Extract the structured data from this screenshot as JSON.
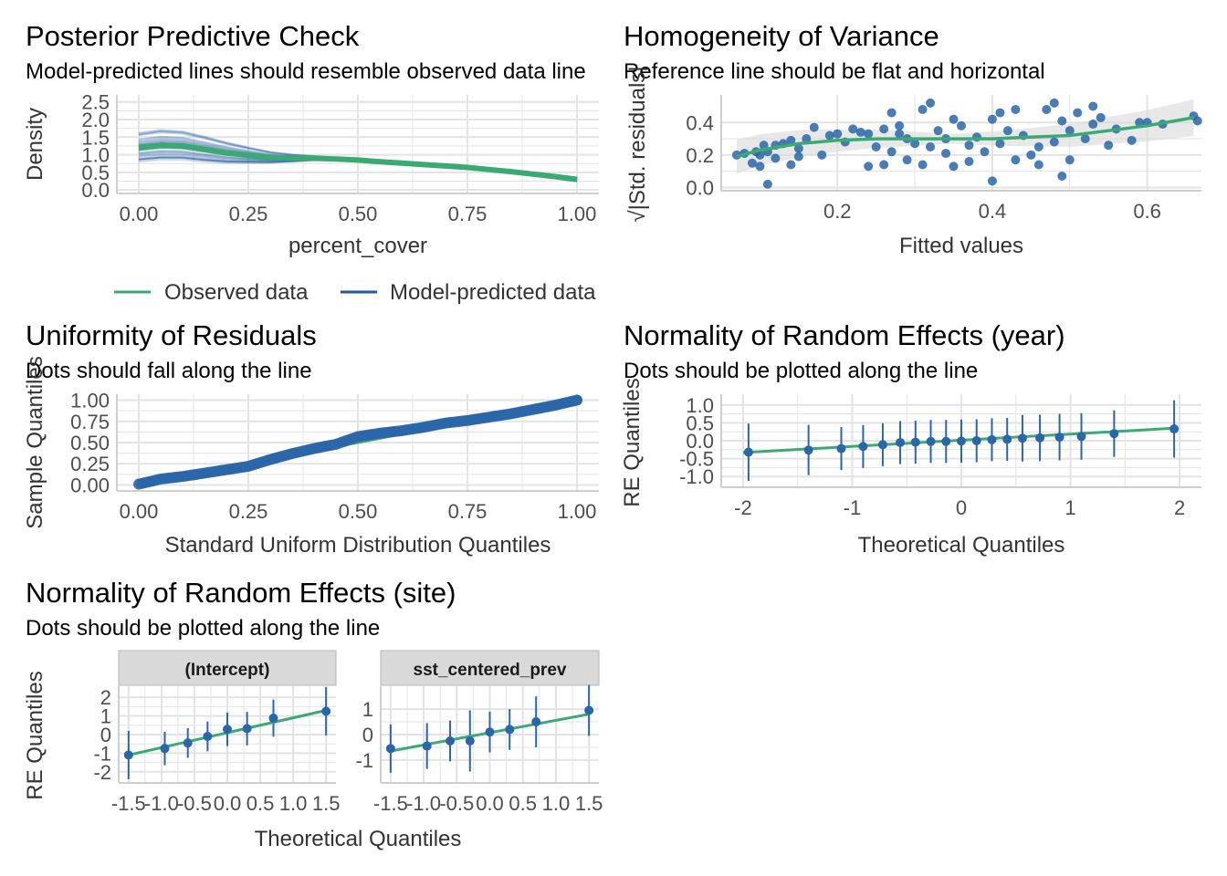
{
  "colors": {
    "observed": "#3aaa72",
    "predicted": "#1f5a9c",
    "points": "#2b66a8",
    "band": "#d9d9d9",
    "grid": "#e3e3e3",
    "strip_bg": "#d9d9d9"
  },
  "chart_data": [
    {
      "id": "ppc",
      "type": "line",
      "title": "Posterior Predictive Check",
      "subtitle": "Model-predicted lines should resemble observed data line",
      "xlabel": "percent_cover",
      "ylabel": "Density",
      "xlim": [
        -0.05,
        1.05
      ],
      "ylim": [
        -0.1,
        2.7
      ],
      "xticks": [
        0,
        0.25,
        0.5,
        0.75,
        1
      ],
      "xtick_labels": [
        "0.00",
        "0.25",
        "0.50",
        "0.75",
        "1.00"
      ],
      "yticks": [
        0,
        0.5,
        1,
        1.5,
        2,
        2.5
      ],
      "ytick_labels": [
        "0.0",
        "0.5",
        "1.0",
        "1.5",
        "2.0",
        "2.5"
      ],
      "legend": [
        "Observed data",
        "Model-predicted data"
      ],
      "observed": {
        "x": [
          0,
          0.05,
          0.1,
          0.15,
          0.2,
          0.25,
          0.3,
          0.35,
          0.4,
          0.45,
          0.5,
          0.55,
          0.6,
          0.65,
          0.7,
          0.75,
          0.8,
          0.85,
          0.9,
          0.95,
          1.0
        ],
        "y": [
          1.2,
          1.27,
          1.25,
          1.15,
          1.05,
          0.98,
          0.92,
          0.9,
          0.9,
          0.88,
          0.85,
          0.8,
          0.76,
          0.72,
          0.68,
          0.64,
          0.58,
          0.52,
          0.45,
          0.38,
          0.3
        ]
      }
    },
    {
      "id": "hov",
      "type": "scatter",
      "title": "Homogeneity of Variance",
      "subtitle": "Reference line should be flat and horizontal",
      "xlabel": "Fitted values",
      "ylabel": "√|Std. residuals|",
      "xlim": [
        0.05,
        0.67
      ],
      "ylim": [
        -0.02,
        0.57
      ],
      "xticks": [
        0.2,
        0.4,
        0.6
      ],
      "xtick_labels": [
        "0.2",
        "0.4",
        "0.6"
      ],
      "yticks": [
        0,
        0.2,
        0.4
      ],
      "ytick_labels": [
        "0.0",
        "0.2",
        "0.4"
      ],
      "points": [
        [
          0.07,
          0.2
        ],
        [
          0.08,
          0.21
        ],
        [
          0.09,
          0.15
        ],
        [
          0.095,
          0.22
        ],
        [
          0.1,
          0.2
        ],
        [
          0.1,
          0.13
        ],
        [
          0.105,
          0.26
        ],
        [
          0.11,
          0.02
        ],
        [
          0.11,
          0.22
        ],
        [
          0.12,
          0.18
        ],
        [
          0.12,
          0.26
        ],
        [
          0.13,
          0.27
        ],
        [
          0.14,
          0.14
        ],
        [
          0.14,
          0.29
        ],
        [
          0.15,
          0.24
        ],
        [
          0.15,
          0.19
        ],
        [
          0.16,
          0.3
        ],
        [
          0.17,
          0.37
        ],
        [
          0.18,
          0.2
        ],
        [
          0.19,
          0.32
        ],
        [
          0.2,
          0.33
        ],
        [
          0.21,
          0.28
        ],
        [
          0.22,
          0.36
        ],
        [
          0.23,
          0.34
        ],
        [
          0.24,
          0.13
        ],
        [
          0.24,
          0.33
        ],
        [
          0.25,
          0.25
        ],
        [
          0.26,
          0.14
        ],
        [
          0.26,
          0.36
        ],
        [
          0.27,
          0.22
        ],
        [
          0.27,
          0.46
        ],
        [
          0.28,
          0.38
        ],
        [
          0.28,
          0.33
        ],
        [
          0.29,
          0.17
        ],
        [
          0.29,
          0.3
        ],
        [
          0.3,
          0.27
        ],
        [
          0.31,
          0.48
        ],
        [
          0.31,
          0.14
        ],
        [
          0.32,
          0.25
        ],
        [
          0.32,
          0.52
        ],
        [
          0.33,
          0.35
        ],
        [
          0.34,
          0.21
        ],
        [
          0.34,
          0.3
        ],
        [
          0.35,
          0.13
        ],
        [
          0.35,
          0.42
        ],
        [
          0.36,
          0.38
        ],
        [
          0.37,
          0.16
        ],
        [
          0.37,
          0.26
        ],
        [
          0.38,
          0.31
        ],
        [
          0.39,
          0.22
        ],
        [
          0.4,
          0.42
        ],
        [
          0.4,
          0.04
        ],
        [
          0.41,
          0.27
        ],
        [
          0.41,
          0.46
        ],
        [
          0.42,
          0.35
        ],
        [
          0.43,
          0.17
        ],
        [
          0.43,
          0.48
        ],
        [
          0.44,
          0.32
        ],
        [
          0.45,
          0.2
        ],
        [
          0.46,
          0.14
        ],
        [
          0.46,
          0.25
        ],
        [
          0.47,
          0.48
        ],
        [
          0.48,
          0.52
        ],
        [
          0.48,
          0.28
        ],
        [
          0.49,
          0.07
        ],
        [
          0.49,
          0.41
        ],
        [
          0.5,
          0.17
        ],
        [
          0.5,
          0.35
        ],
        [
          0.51,
          0.46
        ],
        [
          0.52,
          0.3
        ],
        [
          0.53,
          0.5
        ],
        [
          0.53,
          0.39
        ],
        [
          0.54,
          0.43
        ],
        [
          0.55,
          0.26
        ],
        [
          0.56,
          0.36
        ],
        [
          0.58,
          0.29
        ],
        [
          0.59,
          0.4
        ],
        [
          0.6,
          0.4
        ],
        [
          0.62,
          0.39
        ],
        [
          0.66,
          0.44
        ],
        [
          0.665,
          0.41
        ]
      ],
      "smooth": {
        "x": [
          0.07,
          0.1,
          0.15,
          0.2,
          0.25,
          0.3,
          0.35,
          0.4,
          0.45,
          0.5,
          0.55,
          0.6,
          0.66
        ],
        "y": [
          0.19,
          0.23,
          0.27,
          0.29,
          0.3,
          0.3,
          0.3,
          0.3,
          0.31,
          0.32,
          0.35,
          0.38,
          0.43
        ]
      }
    },
    {
      "id": "uni",
      "type": "scatter",
      "title": "Uniformity of Residuals",
      "subtitle": "Dots should fall along the line",
      "xlabel": "Standard Uniform Distribution Quantiles",
      "ylabel": "Sample Quantiles",
      "xlim": [
        -0.05,
        1.05
      ],
      "ylim": [
        -0.07,
        1.07
      ],
      "xticks": [
        0,
        0.25,
        0.5,
        0.75,
        1
      ],
      "xtick_labels": [
        "0.00",
        "0.25",
        "0.50",
        "0.75",
        "1.00"
      ],
      "yticks": [
        0,
        0.25,
        0.5,
        0.75,
        1
      ],
      "ytick_labels": [
        "0.00",
        "0.25",
        "0.50",
        "0.75",
        "1.00"
      ],
      "curve": {
        "x": [
          0,
          0.05,
          0.1,
          0.15,
          0.2,
          0.25,
          0.3,
          0.35,
          0.4,
          0.45,
          0.5,
          0.55,
          0.6,
          0.65,
          0.7,
          0.75,
          0.8,
          0.85,
          0.9,
          0.95,
          1.0
        ],
        "y": [
          0.01,
          0.07,
          0.1,
          0.14,
          0.18,
          0.22,
          0.3,
          0.37,
          0.43,
          0.48,
          0.57,
          0.61,
          0.64,
          0.68,
          0.73,
          0.76,
          0.8,
          0.84,
          0.89,
          0.94,
          1.0
        ]
      }
    },
    {
      "id": "rey",
      "type": "scatter",
      "title": "Normality of Random Effects (year)",
      "subtitle": "Dots should be plotted along the line",
      "xlabel": "Theoretical Quantiles",
      "ylabel": "RE Quantiles",
      "xlim": [
        -2.2,
        2.2
      ],
      "ylim": [
        -1.3,
        1.3
      ],
      "xticks": [
        -2,
        -1,
        0,
        1,
        2
      ],
      "xtick_labels": [
        "-2",
        "-1",
        "0",
        "1",
        "2"
      ],
      "yticks": [
        -1,
        -0.5,
        0,
        0.5,
        1
      ],
      "ytick_labels": [
        "-1.0",
        "-0.5",
        "0.0",
        "0.5",
        "1.0"
      ],
      "line": [
        [
          -2,
          -0.33
        ],
        [
          1.95,
          0.35
        ]
      ],
      "points": [
        [
          -1.95,
          -0.32,
          0.8
        ],
        [
          -1.4,
          -0.26,
          0.7
        ],
        [
          -1.1,
          -0.22,
          0.6
        ],
        [
          -0.9,
          -0.16,
          0.6
        ],
        [
          -0.72,
          -0.11,
          0.6
        ],
        [
          -0.56,
          -0.05,
          0.6
        ],
        [
          -0.42,
          -0.04,
          0.6
        ],
        [
          -0.28,
          -0.02,
          0.6
        ],
        [
          -0.14,
          -0.02,
          0.6
        ],
        [
          0.0,
          -0.01,
          0.6
        ],
        [
          0.14,
          0.0,
          0.6
        ],
        [
          0.28,
          0.03,
          0.6
        ],
        [
          0.42,
          0.04,
          0.6
        ],
        [
          0.56,
          0.07,
          0.65
        ],
        [
          0.72,
          0.08,
          0.65
        ],
        [
          0.9,
          0.1,
          0.65
        ],
        [
          1.1,
          0.12,
          0.65
        ],
        [
          1.4,
          0.2,
          0.65
        ],
        [
          1.95,
          0.33,
          0.8
        ]
      ]
    },
    {
      "id": "res",
      "type": "scatter",
      "title": "Normality of Random Effects (site)",
      "subtitle": "Dots should be plotted along the line",
      "xlabel": "Theoretical Quantiles",
      "ylabel": "RE Quantiles",
      "facets": [
        {
          "strip": "(Intercept)",
          "xlim": [
            -1.65,
            1.65
          ],
          "ylim": [
            -2.6,
            2.6
          ],
          "xticks": [
            -1.5,
            -1,
            -0.5,
            0,
            0.5,
            1,
            1.5
          ],
          "xtick_labels": [
            "-1.5",
            "-1.0",
            "-0.5",
            "0.0",
            "0.5",
            "1.0",
            "1.5"
          ],
          "yticks": [
            -2,
            -1,
            0,
            1,
            2
          ],
          "ytick_labels": [
            "-2",
            "-1",
            "0",
            "1",
            "2"
          ],
          "line": [
            [
              -1.5,
              -1.1
            ],
            [
              1.5,
              1.3
            ]
          ],
          "points": [
            [
              -1.5,
              -1.1,
              1.3
            ],
            [
              -0.95,
              -0.75,
              0.9
            ],
            [
              -0.6,
              -0.45,
              0.8
            ],
            [
              -0.3,
              -0.1,
              0.8
            ],
            [
              0.0,
              0.28,
              0.9
            ],
            [
              0.3,
              0.32,
              0.9
            ],
            [
              0.7,
              0.88,
              1.0
            ],
            [
              1.5,
              1.25,
              1.3
            ]
          ]
        },
        {
          "strip": "sst_centered_prev",
          "xlim": [
            -1.65,
            1.65
          ],
          "ylim": [
            -1.9,
            1.9
          ],
          "xticks": [
            -1.5,
            -1,
            -0.5,
            0,
            0.5,
            1,
            1.5
          ],
          "xtick_labels": [
            "-1.5",
            "-1.0",
            "-0.5",
            "0.0",
            "0.5",
            "1.0",
            "1.5"
          ],
          "yticks": [
            -1,
            0,
            1
          ],
          "ytick_labels": [
            "-1",
            "0",
            "1"
          ],
          "line": [
            [
              -1.5,
              -0.65
            ],
            [
              1.5,
              0.8
            ]
          ],
          "points": [
            [
              -1.5,
              -0.55,
              0.95
            ],
            [
              -0.95,
              -0.45,
              0.9
            ],
            [
              -0.6,
              -0.25,
              0.8
            ],
            [
              -0.3,
              -0.25,
              1.2
            ],
            [
              0.0,
              0.1,
              0.8
            ],
            [
              0.3,
              0.2,
              0.8
            ],
            [
              0.7,
              0.5,
              1.0
            ],
            [
              1.5,
              0.95,
              1.0
            ]
          ]
        }
      ]
    }
  ]
}
